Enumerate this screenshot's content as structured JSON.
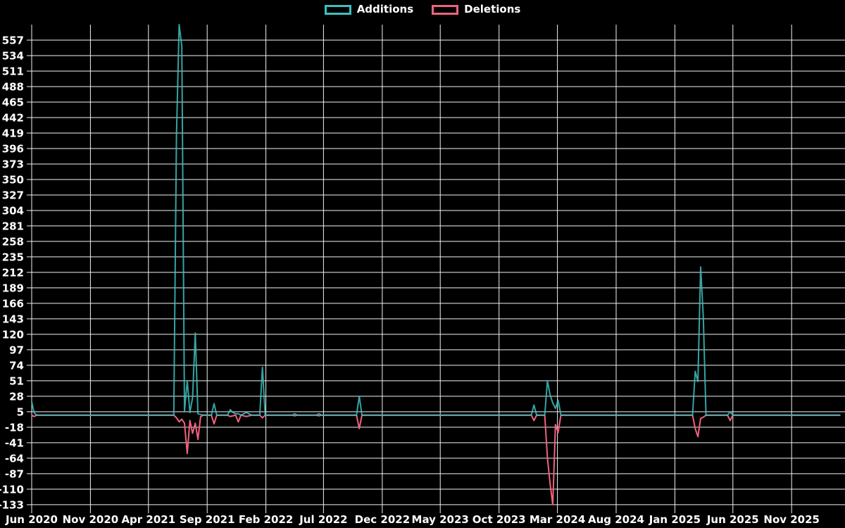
{
  "chart_data": {
    "type": "line",
    "title": "",
    "xlabel": "",
    "ylabel": "",
    "legend_position": "top-center",
    "grid": true,
    "background_color": "#000000",
    "grid_color": "#f2f2f2",
    "text_color": "#ffffff",
    "series": [
      {
        "name": "Additions",
        "color": "#3ebfc0"
      },
      {
        "name": "Deletions",
        "color": "#f0627e"
      }
    ],
    "ylim": [
      -141.5,
      580
    ],
    "y_ticks": [
      557,
      534,
      511,
      488,
      465,
      442,
      419,
      396,
      373,
      350,
      327,
      304,
      281,
      258,
      235,
      212,
      189,
      166,
      143,
      120,
      97,
      74,
      51,
      28,
      5,
      -18,
      -41,
      -64,
      -87,
      -110,
      -133
    ],
    "x_domain": [
      "2020-06-01",
      "2026-03-20"
    ],
    "x_ticks": [
      {
        "label": "Jun 2020",
        "date": "2020-06-01"
      },
      {
        "label": "Nov 2020",
        "date": "2020-11-01"
      },
      {
        "label": "Apr 2021",
        "date": "2021-04-01"
      },
      {
        "label": "Sep 2021",
        "date": "2021-09-01"
      },
      {
        "label": "Feb 2022",
        "date": "2022-02-01"
      },
      {
        "label": "Jul 2022",
        "date": "2022-07-01"
      },
      {
        "label": "Dec 2022",
        "date": "2022-12-01"
      },
      {
        "label": "May 2023",
        "date": "2023-05-01"
      },
      {
        "label": "Oct 2023",
        "date": "2023-10-01"
      },
      {
        "label": "Mar 2024",
        "date": "2024-03-01"
      },
      {
        "label": "Aug 2024",
        "date": "2024-08-01"
      },
      {
        "label": "Jan 2025",
        "date": "2025-01-01"
      },
      {
        "label": "Jun 2025",
        "date": "2025-06-01"
      },
      {
        "label": "Nov 2025",
        "date": "2025-11-01"
      }
    ],
    "points_format": [
      "week",
      "additions",
      "deletions"
    ],
    "points": [
      [
        "2020-06-01",
        20,
        0
      ],
      [
        "2020-06-07",
        4,
        -2
      ],
      [
        "2020-06-14",
        0,
        0
      ],
      [
        "2021-06-06",
        0,
        0
      ],
      [
        "2021-06-13",
        415,
        -4
      ],
      [
        "2021-06-20",
        580,
        -10
      ],
      [
        "2021-06-27",
        548,
        -6
      ],
      [
        "2021-07-04",
        6,
        -12
      ],
      [
        "2021-07-11",
        51,
        -57
      ],
      [
        "2021-07-18",
        4,
        -8
      ],
      [
        "2021-07-25",
        26,
        -27
      ],
      [
        "2021-08-01",
        122,
        -12
      ],
      [
        "2021-08-08",
        2,
        -36
      ],
      [
        "2021-08-15",
        1,
        -2
      ],
      [
        "2021-08-22",
        0,
        0
      ],
      [
        "2021-09-12",
        0,
        0
      ],
      [
        "2021-09-19",
        17,
        -13
      ],
      [
        "2021-09-26",
        0,
        0
      ],
      [
        "2021-10-24",
        0,
        0
      ],
      [
        "2021-10-31",
        8,
        -2
      ],
      [
        "2021-11-07",
        4,
        -1
      ],
      [
        "2021-11-14",
        2,
        0
      ],
      [
        "2021-11-21",
        2,
        -10
      ],
      [
        "2021-11-28",
        0,
        0
      ],
      [
        "2021-12-12",
        4,
        -2
      ],
      [
        "2021-12-19",
        2,
        -1
      ],
      [
        "2021-12-26",
        0,
        0
      ],
      [
        "2022-01-16",
        0,
        0
      ],
      [
        "2022-01-23",
        71,
        -4
      ],
      [
        "2022-01-30",
        0,
        0
      ],
      [
        "2022-04-10",
        0,
        0
      ],
      [
        "2022-04-17",
        2,
        -1
      ],
      [
        "2022-04-24",
        0,
        0
      ],
      [
        "2022-06-12",
        0,
        0
      ],
      [
        "2022-06-19",
        2,
        -1
      ],
      [
        "2022-06-26",
        0,
        0
      ],
      [
        "2022-09-25",
        0,
        0
      ],
      [
        "2022-10-02",
        28,
        -20
      ],
      [
        "2022-10-09",
        0,
        0
      ],
      [
        "2023-12-24",
        0,
        0
      ],
      [
        "2023-12-31",
        15,
        -8
      ],
      [
        "2024-01-07",
        0,
        0
      ],
      [
        "2024-01-28",
        0,
        0
      ],
      [
        "2024-02-04",
        51,
        -63
      ],
      [
        "2024-02-11",
        30,
        -102
      ],
      [
        "2024-02-18",
        18,
        -133
      ],
      [
        "2024-02-25",
        10,
        -14
      ],
      [
        "2024-03-03",
        22,
        -26
      ],
      [
        "2024-03-10",
        0,
        0
      ],
      [
        "2025-02-16",
        0,
        0
      ],
      [
        "2025-02-23",
        65,
        -20
      ],
      [
        "2025-03-02",
        50,
        -32
      ],
      [
        "2025-03-09",
        220,
        -5
      ],
      [
        "2025-03-16",
        145,
        -3
      ],
      [
        "2025-03-23",
        0,
        0
      ],
      [
        "2025-05-18",
        0,
        0
      ],
      [
        "2025-05-25",
        5,
        -8
      ],
      [
        "2025-06-01",
        0,
        0
      ],
      [
        "2026-03-08",
        0,
        0
      ]
    ]
  }
}
